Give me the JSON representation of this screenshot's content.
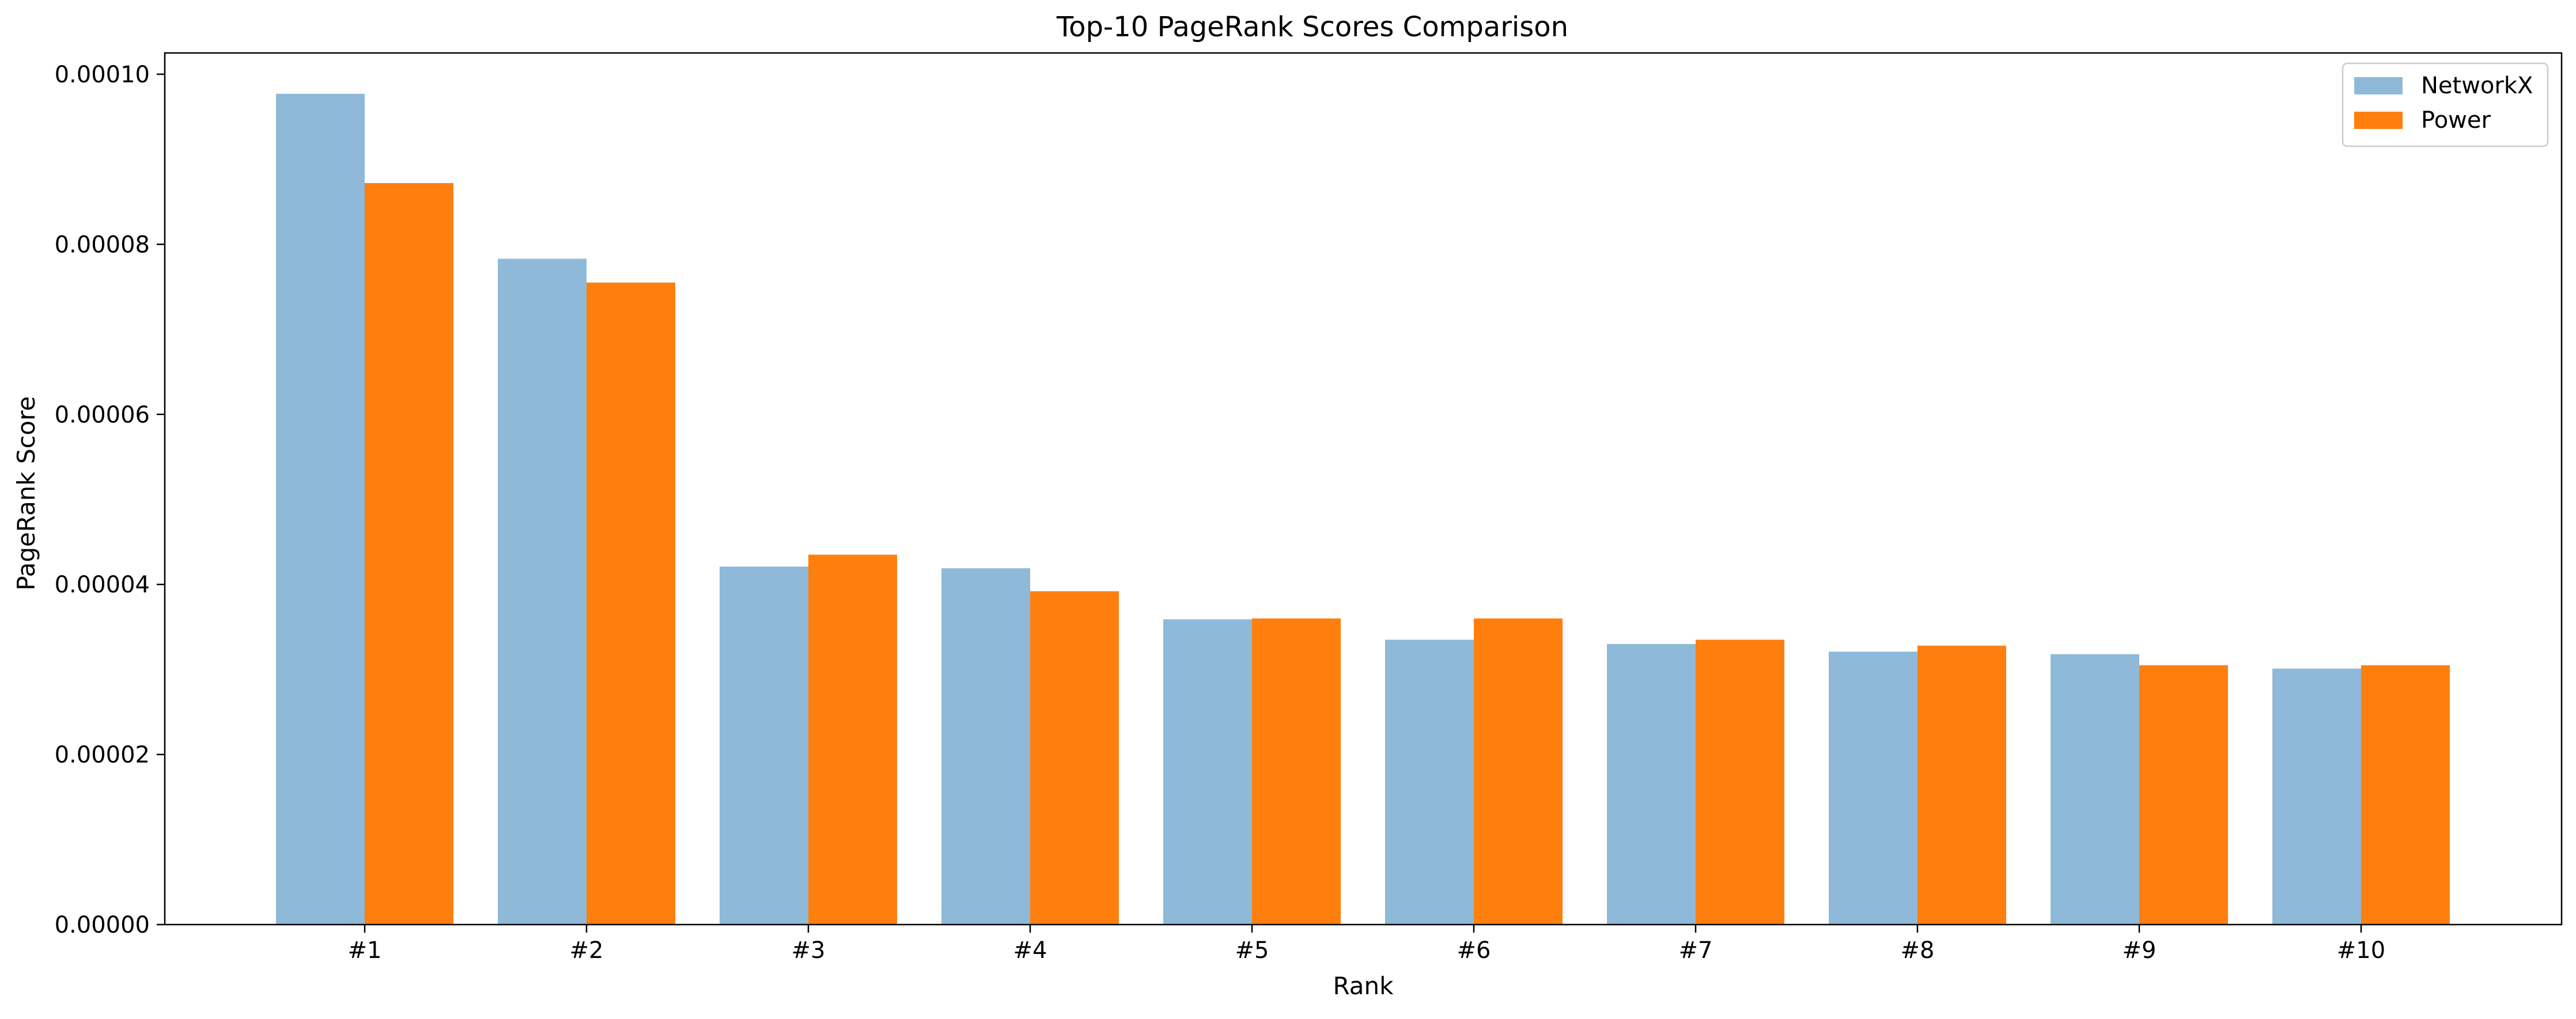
{
  "chart_data": {
    "type": "bar",
    "title": "Top-10 PageRank Scores Comparison",
    "xlabel": "Rank",
    "ylabel": "PageRank Score",
    "categories": [
      "#1",
      "#2",
      "#3",
      "#4",
      "#5",
      "#6",
      "#7",
      "#8",
      "#9",
      "#10"
    ],
    "series": [
      {
        "name": "NetworkX",
        "color": "#8fb9d8",
        "values": [
          9.77e-05,
          7.83e-05,
          4.21e-05,
          4.19e-05,
          3.59e-05,
          3.35e-05,
          3.3e-05,
          3.21e-05,
          3.18e-05,
          3.01e-05
        ]
      },
      {
        "name": "Power",
        "color": "#ff7f0e",
        "values": [
          8.72e-05,
          7.55e-05,
          4.35e-05,
          3.92e-05,
          3.6e-05,
          3.6e-05,
          3.35e-05,
          3.28e-05,
          3.05e-05,
          3.05e-05
        ]
      }
    ],
    "ylim": [
      0,
      0.0001025
    ],
    "yticks": [
      "0.00000",
      "0.00002",
      "0.00004",
      "0.00006",
      "0.00008",
      "0.00010"
    ],
    "ytick_values": [
      0,
      2e-05,
      4e-05,
      6e-05,
      8e-05,
      0.0001
    ],
    "grid": false,
    "legend_position": "top-right"
  }
}
